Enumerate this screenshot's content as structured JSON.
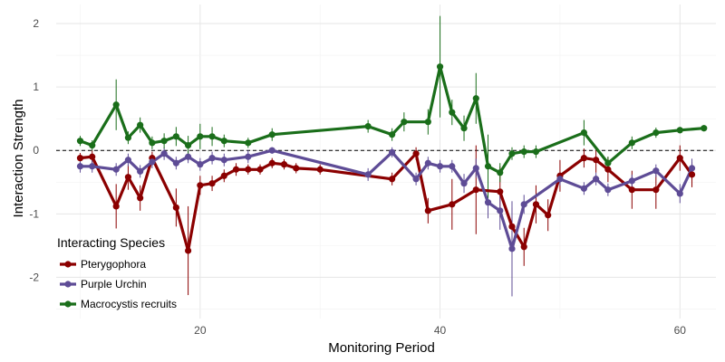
{
  "chart_data": {
    "type": "line",
    "xlabel": "Monitoring Period",
    "ylabel": "Interaction Strength",
    "xlim": [
      8,
      63
    ],
    "ylim": [
      -2.65,
      2.3
    ],
    "x_ticks": [
      20,
      40,
      60
    ],
    "y_ticks": [
      -2,
      -1,
      0,
      1,
      2
    ],
    "x_tick_labels": [
      "20",
      "40",
      "60"
    ],
    "y_tick_labels": [
      "-2",
      "-1",
      "0",
      "1",
      "2"
    ],
    "grid": true,
    "reference_line": {
      "y": 0,
      "style": "dashed"
    },
    "legend": {
      "title": "Interacting Species",
      "position": "bottom-left"
    },
    "series": [
      {
        "name": "Pterygophora",
        "color": "#8b0000",
        "x": [
          10,
          11,
          13,
          14,
          15,
          16,
          18,
          19,
          20,
          21,
          22,
          23,
          24,
          25,
          26,
          27,
          28,
          30,
          36,
          38,
          39,
          41,
          43,
          45,
          46,
          47,
          48,
          49,
          50,
          52,
          53,
          54,
          56,
          58,
          60,
          61
        ],
        "y": [
          -0.12,
          -0.1,
          -0.88,
          -0.42,
          -0.75,
          -0.12,
          -0.9,
          -1.58,
          -0.55,
          -0.52,
          -0.4,
          -0.3,
          -0.3,
          -0.3,
          -0.2,
          -0.22,
          -0.28,
          -0.3,
          -0.45,
          -0.05,
          -0.95,
          -0.85,
          -0.62,
          -0.65,
          -1.2,
          -1.52,
          -0.85,
          -1.02,
          -0.4,
          -0.12,
          -0.15,
          -0.3,
          -0.62,
          -0.62,
          -0.12,
          -0.38
        ],
        "err": [
          0.08,
          0.1,
          0.35,
          0.2,
          0.2,
          0.1,
          0.3,
          0.7,
          0.15,
          0.12,
          0.1,
          0.1,
          0.08,
          0.08,
          0.08,
          0.08,
          0.08,
          0.08,
          0.1,
          0.1,
          0.2,
          0.4,
          0.7,
          0.4,
          0.3,
          0.3,
          0.3,
          0.25,
          0.25,
          0.15,
          0.2,
          0.2,
          0.3,
          0.3,
          0.2,
          0.2
        ]
      },
      {
        "name": "Purple Urchin",
        "color": "#5e4c96",
        "x": [
          10,
          11,
          13,
          14,
          15,
          16,
          17,
          18,
          19,
          20,
          21,
          22,
          24,
          26,
          34,
          36,
          38,
          39,
          40,
          41,
          42,
          43,
          44,
          45,
          46,
          47,
          50,
          52,
          53,
          54,
          56,
          58,
          60,
          61
        ],
        "y": [
          -0.25,
          -0.25,
          -0.3,
          -0.15,
          -0.33,
          -0.18,
          -0.05,
          -0.2,
          -0.1,
          -0.22,
          -0.12,
          -0.15,
          -0.1,
          0.0,
          -0.38,
          -0.03,
          -0.45,
          -0.2,
          -0.25,
          -0.25,
          -0.52,
          -0.28,
          -0.82,
          -0.95,
          -1.55,
          -0.85,
          -0.45,
          -0.6,
          -0.45,
          -0.62,
          -0.48,
          -0.32,
          -0.68,
          -0.28
        ],
        "err": [
          0.1,
          0.1,
          0.1,
          0.1,
          0.1,
          0.1,
          0.1,
          0.1,
          0.1,
          0.1,
          0.1,
          0.1,
          0.1,
          0.05,
          0.1,
          0.08,
          0.1,
          0.1,
          0.1,
          0.1,
          0.15,
          0.15,
          0.25,
          0.3,
          0.75,
          0.15,
          0.1,
          0.1,
          0.1,
          0.1,
          0.1,
          0.1,
          0.15,
          0.15
        ]
      },
      {
        "name": "Macrocystis recruits",
        "color": "#1a6e1a",
        "x": [
          10,
          11,
          13,
          14,
          15,
          16,
          17,
          18,
          19,
          20,
          21,
          22,
          24,
          26,
          34,
          36,
          37,
          39,
          40,
          41,
          42,
          43,
          44,
          45,
          46,
          47,
          48,
          52,
          54,
          56,
          58,
          60,
          62
        ],
        "y": [
          0.15,
          0.08,
          0.72,
          0.2,
          0.4,
          0.12,
          0.15,
          0.22,
          0.08,
          0.22,
          0.22,
          0.15,
          0.12,
          0.25,
          0.38,
          0.25,
          0.45,
          0.45,
          1.32,
          0.6,
          0.35,
          0.82,
          -0.25,
          -0.35,
          -0.05,
          -0.02,
          -0.02,
          0.28,
          -0.2,
          0.12,
          0.28,
          0.32,
          0.35
        ],
        "err": [
          0.08,
          0.08,
          0.4,
          0.1,
          0.12,
          0.1,
          0.12,
          0.15,
          0.15,
          0.2,
          0.15,
          0.1,
          0.08,
          0.1,
          0.1,
          0.1,
          0.15,
          0.2,
          0.8,
          0.2,
          0.2,
          0.4,
          0.5,
          0.15,
          0.1,
          0.1,
          0.1,
          0.2,
          0.1,
          0.1,
          0.08,
          0.05,
          0.05
        ]
      }
    ]
  }
}
